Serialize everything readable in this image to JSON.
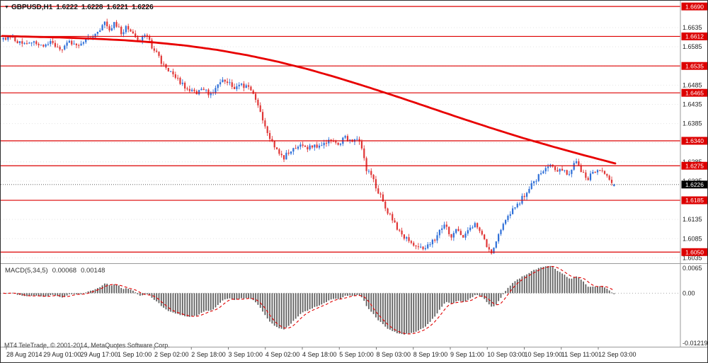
{
  "header": {
    "dropdown_icon": "▼",
    "symbol_timeframe": "GBPUSD,H1",
    "open": "1.6222",
    "high": "1.6228",
    "low": "1.6221",
    "close": "1.6226"
  },
  "macd": {
    "title": "MACD(5,34,5)",
    "value_main": "0.00068",
    "value_signal": "0.00148",
    "axis_top": "0.0065",
    "axis_zero": "0.00",
    "axis_bottom": "-0.01219"
  },
  "footer": {
    "copyright": "MT4 TeleTrade, © 2001-2014, MetaQuotes Software Corp."
  },
  "colors": {
    "background": "#ffffff",
    "bull": "#2e6fd8",
    "bear": "#e03636",
    "ma_line": "#e80000",
    "hline": "#dd0000",
    "grid": "#e4e4e4",
    "separator": "#9a9a9a",
    "histogram": "#616161",
    "signal_line": "#e00000",
    "axis_text": "#222222",
    "current_price_bg": "#000000",
    "current_price_text": "#ffffff",
    "current_price_line": "#4a4a4a"
  },
  "chart_data": {
    "type": "candlestick",
    "symbol": "GBPUSD",
    "timeframe": "H1",
    "title": "GBPUSD,H1 1.6222 1.6228 1.6221 1.6226",
    "bars": 260,
    "price_axis": {
      "min": 1.6021,
      "max": 1.6705,
      "ticks": [
        "1.6635",
        "1.6585",
        "1.6535",
        "1.6485",
        "1.6435",
        "1.6385",
        "1.6335",
        "1.6285",
        "1.6235",
        "1.6185",
        "1.6135",
        "1.6085",
        "1.6035"
      ]
    },
    "horizontal_lines": [
      {
        "price": 1.669,
        "label": "1.6690"
      },
      {
        "price": 1.6612,
        "label": "1.6612"
      },
      {
        "price": 1.6535,
        "label": "1.6535"
      },
      {
        "price": 1.6465,
        "label": "1.6465"
      },
      {
        "price": 1.634,
        "label": "1.6340"
      },
      {
        "price": 1.6275,
        "label": "1.6275"
      },
      {
        "price": 1.6185,
        "label": "1.6185"
      },
      {
        "price": 1.605,
        "label": "1.6050"
      }
    ],
    "current_price": {
      "value": 1.6226,
      "label": "1.6226"
    },
    "last_ohlc": {
      "open": 1.6222,
      "high": 1.6228,
      "low": 1.6221,
      "close": 1.6226
    },
    "time_labels": [
      "28 Aug 2014",
      "29 Aug 01:00",
      "29 Aug 17:00",
      "1 Sep 10:00",
      "2 Sep 02:00",
      "2 Sep 18:00",
      "3 Sep 10:00",
      "4 Sep 02:00",
      "4 Sep 18:00",
      "5 Sep 10:00",
      "8 Sep 03:00",
      "8 Sep 19:00",
      "9 Sep 11:00",
      "10 Sep 03:00",
      "10 Sep 19:00",
      "11 Sep 11:00",
      "12 Sep 03:00"
    ],
    "price_path": [
      [
        0.0,
        1.6602
      ],
      [
        0.015,
        1.6612
      ],
      [
        0.03,
        1.659
      ],
      [
        0.048,
        1.6601
      ],
      [
        0.062,
        1.6585
      ],
      [
        0.078,
        1.6598
      ],
      [
        0.094,
        1.6579
      ],
      [
        0.108,
        1.6596
      ],
      [
        0.124,
        1.6588
      ],
      [
        0.14,
        1.6604
      ],
      [
        0.155,
        1.662
      ],
      [
        0.165,
        1.6653
      ],
      [
        0.173,
        1.6628
      ],
      [
        0.183,
        1.6648
      ],
      [
        0.193,
        1.6622
      ],
      [
        0.203,
        1.664
      ],
      [
        0.213,
        1.6618
      ],
      [
        0.223,
        1.66
      ],
      [
        0.233,
        1.6614
      ],
      [
        0.245,
        1.6582
      ],
      [
        0.258,
        1.6548
      ],
      [
        0.272,
        1.652
      ],
      [
        0.287,
        1.6497
      ],
      [
        0.3,
        1.6477
      ],
      [
        0.313,
        1.6463
      ],
      [
        0.326,
        1.6478
      ],
      [
        0.339,
        1.6461
      ],
      [
        0.352,
        1.6487
      ],
      [
        0.365,
        1.6499
      ],
      [
        0.378,
        1.6477
      ],
      [
        0.392,
        1.6484
      ],
      [
        0.405,
        1.6472
      ],
      [
        0.416,
        1.6443
      ],
      [
        0.426,
        1.6392
      ],
      [
        0.436,
        1.6344
      ],
      [
        0.448,
        1.632
      ],
      [
        0.459,
        1.6297
      ],
      [
        0.471,
        1.6317
      ],
      [
        0.484,
        1.633
      ],
      [
        0.496,
        1.6319
      ],
      [
        0.508,
        1.6331
      ],
      [
        0.521,
        1.6323
      ],
      [
        0.534,
        1.6342
      ],
      [
        0.547,
        1.633
      ],
      [
        0.56,
        1.6347
      ],
      [
        0.572,
        1.6336
      ],
      [
        0.585,
        1.6342
      ],
      [
        0.593,
        1.6268
      ],
      [
        0.601,
        1.625
      ],
      [
        0.613,
        1.6212
      ],
      [
        0.626,
        1.6163
      ],
      [
        0.639,
        1.6128
      ],
      [
        0.651,
        1.61
      ],
      [
        0.663,
        1.6081
      ],
      [
        0.676,
        1.6068
      ],
      [
        0.689,
        1.606
      ],
      [
        0.701,
        1.6072
      ],
      [
        0.713,
        1.6103
      ],
      [
        0.723,
        1.6118
      ],
      [
        0.733,
        1.6091
      ],
      [
        0.743,
        1.6108
      ],
      [
        0.753,
        1.6087
      ],
      [
        0.763,
        1.6108
      ],
      [
        0.773,
        1.6122
      ],
      [
        0.781,
        1.6097
      ],
      [
        0.791,
        1.607
      ],
      [
        0.799,
        1.6051
      ],
      [
        0.807,
        1.6079
      ],
      [
        0.816,
        1.6113
      ],
      [
        0.826,
        1.6141
      ],
      [
        0.836,
        1.6163
      ],
      [
        0.846,
        1.6182
      ],
      [
        0.856,
        1.6206
      ],
      [
        0.866,
        1.6233
      ],
      [
        0.876,
        1.6246
      ],
      [
        0.886,
        1.6263
      ],
      [
        0.896,
        1.6276
      ],
      [
        0.906,
        1.6252
      ],
      [
        0.916,
        1.6269
      ],
      [
        0.926,
        1.6251
      ],
      [
        0.936,
        1.6289
      ],
      [
        0.946,
        1.6262
      ],
      [
        0.956,
        1.6241
      ],
      [
        0.966,
        1.6258
      ],
      [
        0.976,
        1.6269
      ],
      [
        0.986,
        1.625
      ],
      [
        1.0,
        1.6226
      ]
    ],
    "ma_path": [
      [
        0.0,
        1.6613
      ],
      [
        0.05,
        1.6611
      ],
      [
        0.1,
        1.6609
      ],
      [
        0.15,
        1.6606
      ],
      [
        0.2,
        1.6602
      ],
      [
        0.25,
        1.6596
      ],
      [
        0.3,
        1.6588
      ],
      [
        0.35,
        1.6577
      ],
      [
        0.4,
        1.6563
      ],
      [
        0.45,
        1.6546
      ],
      [
        0.5,
        1.6526
      ],
      [
        0.55,
        1.6503
      ],
      [
        0.6,
        1.6478
      ],
      [
        0.65,
        1.6452
      ],
      [
        0.7,
        1.6425
      ],
      [
        0.75,
        1.6398
      ],
      [
        0.8,
        1.6372
      ],
      [
        0.85,
        1.6347
      ],
      [
        0.9,
        1.6324
      ],
      [
        0.95,
        1.6302
      ],
      [
        1.0,
        1.6281
      ]
    ],
    "noise": {
      "close": 0.0013,
      "wick": 0.0009
    },
    "seed": 20140912,
    "macd_panel": {
      "parameters": [
        5,
        34,
        5
      ],
      "last_main": 0.00068,
      "last_signal": 0.00148,
      "display_max": 0.0065,
      "display_min": -0.01219
    }
  }
}
